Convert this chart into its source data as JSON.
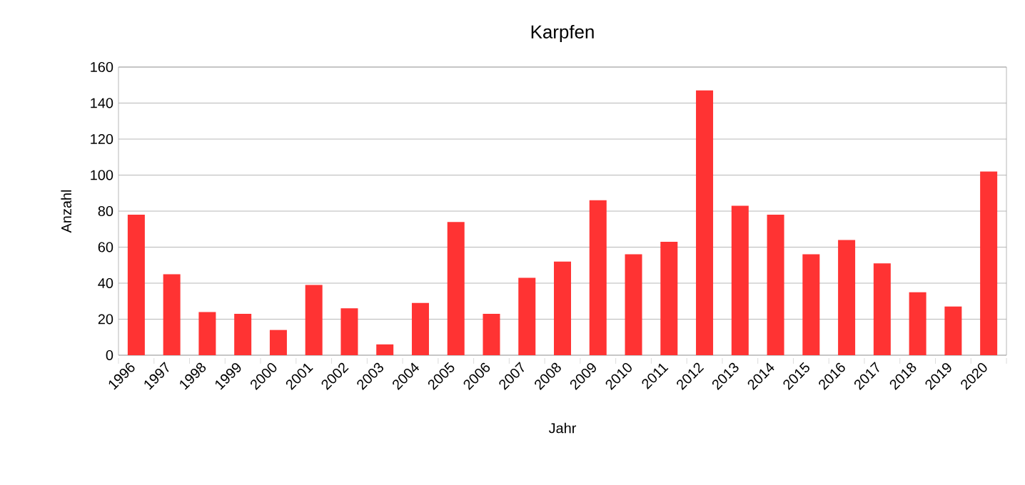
{
  "chart_data": {
    "type": "bar",
    "title": "Karpfen",
    "xlabel": "Jahr",
    "ylabel": "Anzahl",
    "categories": [
      "1996",
      "1997",
      "1998",
      "1999",
      "2000",
      "2001",
      "2002",
      "2003",
      "2004",
      "2005",
      "2006",
      "2007",
      "2008",
      "2009",
      "2010",
      "2011",
      "2012",
      "2013",
      "2014",
      "2015",
      "2016",
      "2017",
      "2018",
      "2019",
      "2020"
    ],
    "values": [
      78,
      45,
      24,
      23,
      14,
      39,
      26,
      6,
      29,
      74,
      23,
      43,
      52,
      86,
      56,
      63,
      147,
      83,
      78,
      56,
      64,
      51,
      35,
      27,
      102
    ],
    "color": "#ff3333",
    "ylim": [
      0,
      160
    ],
    "yticks": [
      0,
      20,
      40,
      60,
      80,
      100,
      120,
      140,
      160
    ],
    "grid": "y"
  }
}
